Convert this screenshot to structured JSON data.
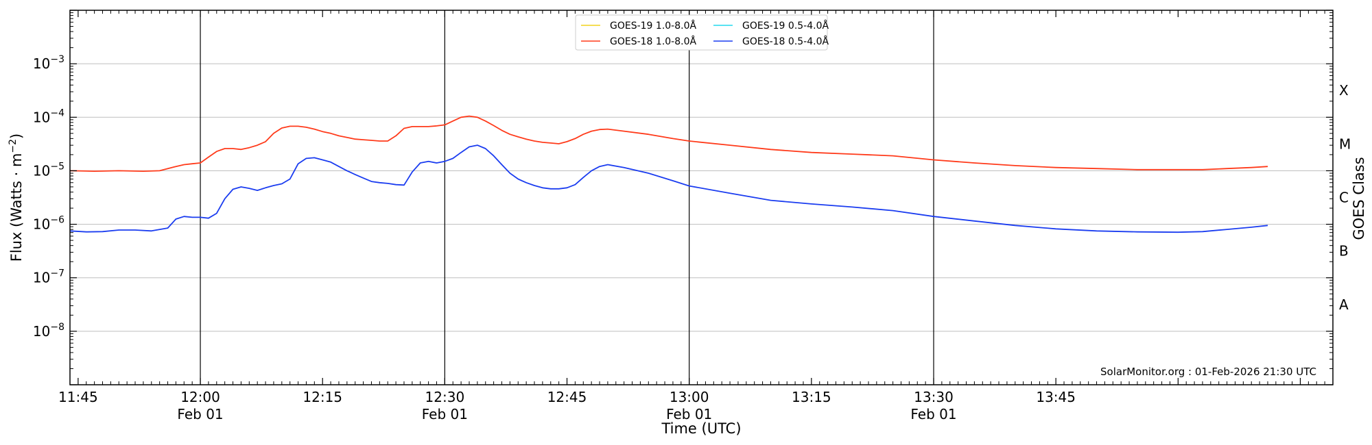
{
  "chart_data": {
    "type": "line",
    "xlabel": "Time (UTC)",
    "ylabel_main": "Flux (Watts · m",
    "ylabel_sup": "−2",
    "ylabel_end": ")",
    "right_label": "GOES Class",
    "credit": "SolarMonitor.org : 01-Feb-2026 21:30 UTC",
    "xlim": [
      -16,
      139
    ],
    "ylim_exp": [
      -9,
      -2
    ],
    "y_ticks": [
      {
        "exp": -8,
        "base": "10",
        "sup": "−8"
      },
      {
        "exp": -7,
        "base": "10",
        "sup": "−7"
      },
      {
        "exp": -6,
        "base": "10",
        "sup": "−6"
      },
      {
        "exp": -5,
        "base": "10",
        "sup": "−5"
      },
      {
        "exp": -4,
        "base": "10",
        "sup": "−4"
      },
      {
        "exp": -3,
        "base": "10",
        "sup": "−3"
      }
    ],
    "x_ticks": [
      {
        "t": -15,
        "label": "11:45",
        "sub": ""
      },
      {
        "t": 0,
        "label": "12:00",
        "sub": "Feb 01"
      },
      {
        "t": 15,
        "label": "12:15",
        "sub": ""
      },
      {
        "t": 30,
        "label": "12:30",
        "sub": "Feb 01"
      },
      {
        "t": 45,
        "label": "12:45",
        "sub": ""
      },
      {
        "t": 60,
        "label": "13:00",
        "sub": "Feb 01"
      },
      {
        "t": 75,
        "label": "13:15",
        "sub": ""
      },
      {
        "t": 90,
        "label": "13:30",
        "sub": "Feb 01"
      },
      {
        "t": 105,
        "label": "13:45",
        "sub": ""
      }
    ],
    "vlines": [
      0,
      30,
      60,
      90
    ],
    "classes": [
      {
        "label": "X",
        "exp": -3.5
      },
      {
        "label": "M",
        "exp": -4.5
      },
      {
        "label": "C",
        "exp": -5.5
      },
      {
        "label": "B",
        "exp": -6.5
      },
      {
        "label": "A",
        "exp": -7.5
      }
    ],
    "legend": [
      {
        "name": "GOES-19 1.0-8.0Å",
        "color": "#f2d21b"
      },
      {
        "name": "GOES-19 0.5-4.0Å",
        "color": "#22d8ee"
      },
      {
        "name": "GOES-18 1.0-8.0Å",
        "color": "#ff3a1a"
      },
      {
        "name": "GOES-18 0.5-4.0Å",
        "color": "#1a3cf0"
      }
    ],
    "series": [
      {
        "name": "GOES-18 1.0-8.0Å",
        "color": "#ff3a1a",
        "time_min": [
          -16,
          -13,
          -10,
          -7,
          -5,
          -3,
          -2,
          -1,
          0,
          1,
          2,
          3,
          4,
          5,
          6,
          7,
          8,
          9,
          10,
          11,
          12,
          13,
          14,
          15,
          16,
          17,
          18,
          19,
          20,
          21,
          22,
          23,
          24,
          25,
          26,
          27,
          28,
          29,
          30,
          31,
          32,
          33,
          34,
          35,
          36,
          37,
          38,
          39,
          40,
          41,
          42,
          43,
          44,
          45,
          46,
          47,
          48,
          49,
          50,
          52,
          55,
          58,
          60,
          65,
          70,
          75,
          80,
          85,
          90,
          95,
          100,
          105,
          110,
          115,
          120,
          123,
          126,
          129,
          131
        ],
        "flux": [
          1e-05,
          9.8e-06,
          1e-05,
          9.8e-06,
          1e-05,
          1.2e-05,
          1.3e-05,
          1.35e-05,
          1.4e-05,
          1.8e-05,
          2.3e-05,
          2.6e-05,
          2.6e-05,
          2.5e-05,
          2.7e-05,
          3e-05,
          3.5e-05,
          5e-05,
          6.3e-05,
          6.8e-05,
          6.8e-05,
          6.5e-05,
          6e-05,
          5.4e-05,
          5e-05,
          4.5e-05,
          4.2e-05,
          3.9e-05,
          3.8e-05,
          3.7e-05,
          3.6e-05,
          3.6e-05,
          4.5e-05,
          6.2e-05,
          6.7e-05,
          6.7e-05,
          6.7e-05,
          6.9e-05,
          7.2e-05,
          8.5e-05,
          0.0001,
          0.000105,
          0.0001,
          8.5e-05,
          7e-05,
          5.7e-05,
          4.8e-05,
          4.3e-05,
          3.9e-05,
          3.6e-05,
          3.4e-05,
          3.3e-05,
          3.2e-05,
          3.5e-05,
          4e-05,
          4.8e-05,
          5.5e-05,
          5.9e-05,
          6e-05,
          5.5e-05,
          4.8e-05,
          4e-05,
          3.6e-05,
          3e-05,
          2.5e-05,
          2.2e-05,
          2.05e-05,
          1.9e-05,
          1.6e-05,
          1.4e-05,
          1.25e-05,
          1.15e-05,
          1.1e-05,
          1.05e-05,
          1.05e-05,
          1.05e-05,
          1.1e-05,
          1.15e-05,
          1.2e-05
        ]
      },
      {
        "name": "GOES-18 0.5-4.0Å",
        "color": "#1a3cf0",
        "time_min": [
          -16,
          -14,
          -12,
          -10,
          -8,
          -6,
          -4,
          -3,
          -2,
          -1,
          0,
          1,
          2,
          3,
          4,
          5,
          6,
          7,
          8,
          9,
          10,
          11,
          12,
          13,
          14,
          15,
          16,
          17,
          18,
          19,
          20,
          21,
          22,
          23,
          24,
          25,
          26,
          27,
          28,
          29,
          30,
          31,
          32,
          33,
          34,
          35,
          36,
          37,
          38,
          39,
          40,
          41,
          42,
          43,
          44,
          45,
          46,
          47,
          48,
          49,
          50,
          52,
          55,
          58,
          60,
          65,
          70,
          75,
          80,
          85,
          90,
          95,
          100,
          105,
          110,
          115,
          120,
          123,
          126,
          129,
          131
        ],
        "flux": [
          7.5e-07,
          7.2e-07,
          7.3e-07,
          7.8e-07,
          7.8e-07,
          7.5e-07,
          8.5e-07,
          1.25e-06,
          1.4e-06,
          1.35e-06,
          1.35e-06,
          1.3e-06,
          1.6e-06,
          3e-06,
          4.5e-06,
          5e-06,
          4.7e-06,
          4.3e-06,
          4.8e-06,
          5.3e-06,
          5.7e-06,
          7e-06,
          1.35e-05,
          1.7e-05,
          1.75e-05,
          1.6e-05,
          1.45e-05,
          1.2e-05,
          1e-05,
          8.5e-06,
          7.3e-06,
          6.3e-06,
          6e-06,
          5.8e-06,
          5.5e-06,
          5.4e-06,
          9.5e-06,
          1.4e-05,
          1.5e-05,
          1.4e-05,
          1.5e-05,
          1.7e-05,
          2.2e-05,
          2.8e-05,
          3e-05,
          2.6e-05,
          1.9e-05,
          1.3e-05,
          9e-06,
          7e-06,
          6e-06,
          5.3e-06,
          4.8e-06,
          4.6e-06,
          4.6e-06,
          4.8e-06,
          5.5e-06,
          7.5e-06,
          1e-05,
          1.2e-05,
          1.3e-05,
          1.15e-05,
          9e-06,
          6.5e-06,
          5.2e-06,
          3.8e-06,
          2.8e-06,
          2.4e-06,
          2.1e-06,
          1.8e-06,
          1.4e-06,
          1.15e-06,
          9.5e-07,
          8.2e-07,
          7.5e-07,
          7.2e-07,
          7.1e-07,
          7.3e-07,
          8e-07,
          8.8e-07,
          9.5e-07
        ]
      }
    ]
  }
}
